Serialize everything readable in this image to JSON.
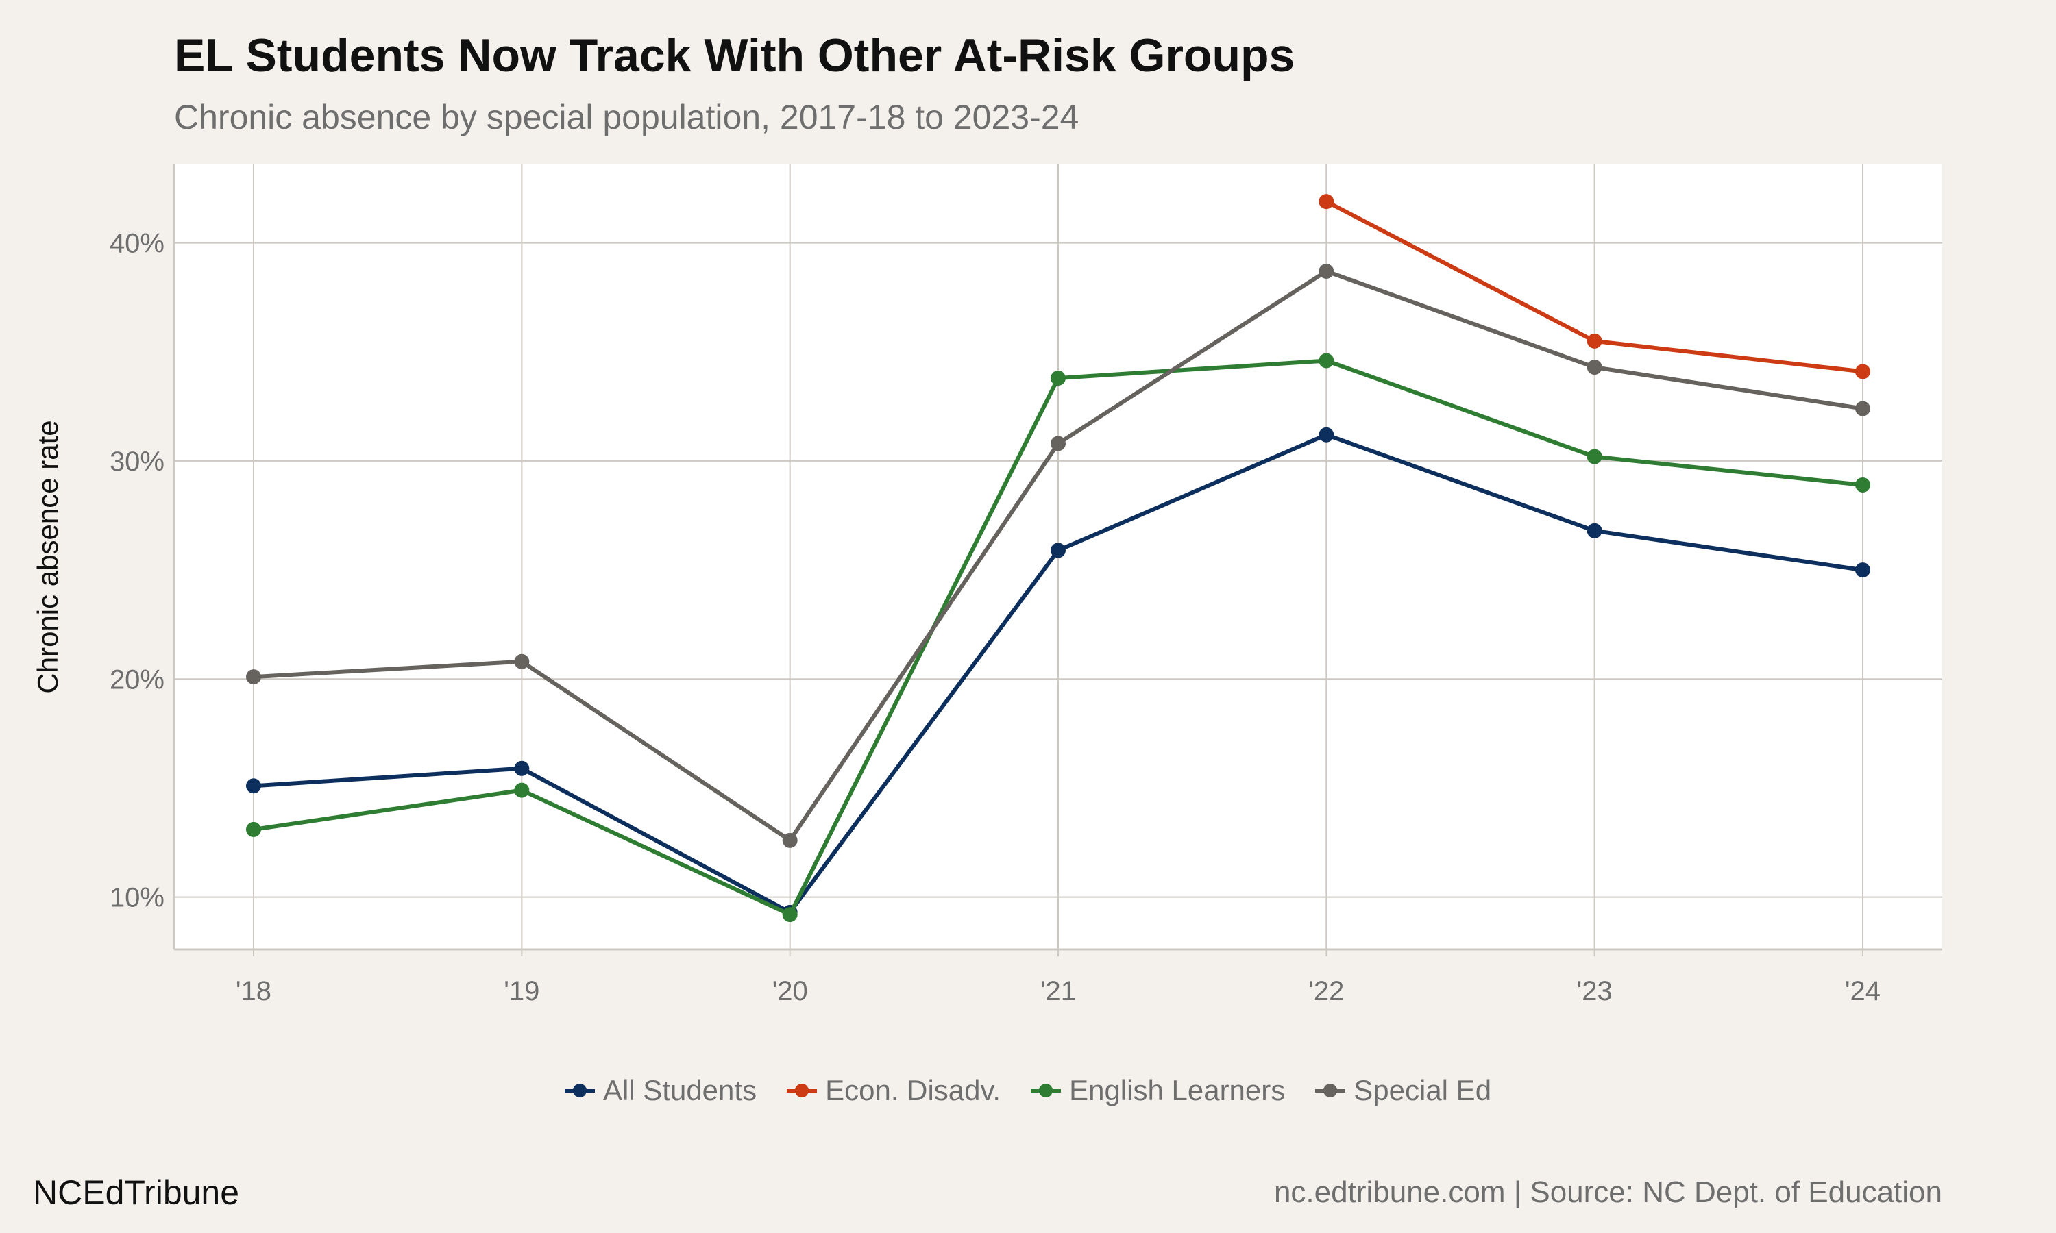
{
  "title": "EL Students Now Track With Other At-Risk Groups",
  "subtitle": "Chronic absence by special population, 2017-18 to 2023-24",
  "footer": {
    "brand": "NCEdTribune",
    "source": "nc.edtribune.com | Source: NC Dept. of Education"
  },
  "colors": {
    "background": "#f4f1ec",
    "panel": "#ffffff",
    "grid": "#cdc9c2",
    "axis_text": "#6e6e6e"
  },
  "chart_data": {
    "type": "line",
    "title": "EL Students Now Track With Other At-Risk Groups",
    "subtitle": "Chronic absence by special population, 2017-18 to 2023-24",
    "xlabel": "",
    "ylabel": "Chronic absence rate",
    "categories": [
      "'18",
      "'19",
      "'20",
      "'21",
      "'22",
      "'23",
      "'24"
    ],
    "ylim": [
      7.6,
      43.6
    ],
    "yticks": [
      10,
      20,
      30,
      40
    ],
    "ytick_labels": [
      "10%",
      "20%",
      "30%",
      "40%"
    ],
    "grid": true,
    "legend_position": "bottom",
    "series": [
      {
        "name": "All Students",
        "color": "#0d2f5e",
        "values": [
          15.1,
          15.9,
          9.3,
          25.9,
          31.2,
          26.8,
          25.0
        ]
      },
      {
        "name": "Econ. Disadv.",
        "color": "#cc3b13",
        "values": [
          null,
          null,
          null,
          null,
          41.9,
          35.5,
          34.1
        ]
      },
      {
        "name": "English Learners",
        "color": "#2e7d32",
        "values": [
          13.1,
          14.9,
          9.2,
          33.8,
          34.6,
          30.2,
          28.9
        ]
      },
      {
        "name": "Special Ed",
        "color": "#66625e",
        "values": [
          20.1,
          20.8,
          12.6,
          30.8,
          38.7,
          34.3,
          32.4
        ]
      }
    ]
  }
}
